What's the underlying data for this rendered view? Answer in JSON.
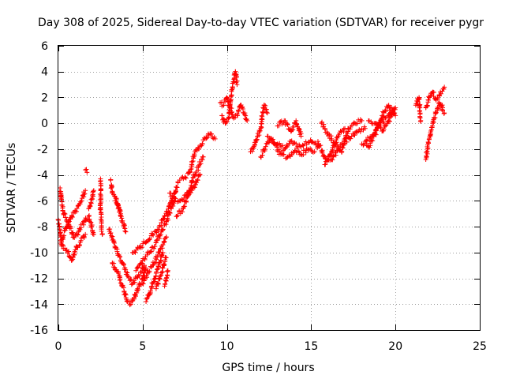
{
  "chart_data": {
    "type": "scatter",
    "title": "Day 308 of 2025, Sidereal Day-to-day VTEC variation (SDTVAR) for receiver pygr",
    "xlabel": "GPS time / hours",
    "ylabel": "SDTVAR / TECUs",
    "xlim": [
      0,
      25
    ],
    "ylim": [
      -16,
      6
    ],
    "xticks": [
      0,
      5,
      10,
      15,
      20,
      25
    ],
    "yticks": [
      -16,
      -14,
      -12,
      -10,
      -8,
      -6,
      -4,
      -2,
      0,
      2,
      4,
      6
    ],
    "grid": true,
    "marker": "+",
    "color": "#ff0000",
    "series": [
      {
        "name": "SDTVAR",
        "segments": [
          [
            [
              0.0,
              -7.5
            ],
            [
              0.2,
              -9.5
            ],
            [
              0.5,
              -9.8
            ],
            [
              0.8,
              -10.6
            ],
            [
              1.0,
              -9.8
            ],
            [
              1.3,
              -9.2
            ],
            [
              1.6,
              -8.6
            ]
          ],
          [
            [
              0.1,
              -5.0
            ],
            [
              0.3,
              -7.0
            ],
            [
              0.6,
              -7.8
            ],
            [
              0.9,
              -8.8
            ],
            [
              1.2,
              -8.4
            ],
            [
              1.5,
              -7.6
            ],
            [
              1.8,
              -7.2
            ],
            [
              2.1,
              -8.6
            ]
          ],
          [
            [
              0.2,
              -9.0
            ],
            [
              0.5,
              -8.0
            ],
            [
              0.8,
              -7.2
            ],
            [
              1.1,
              -6.6
            ],
            [
              1.4,
              -5.8
            ],
            [
              1.6,
              -5.2
            ]
          ],
          [
            [
              1.6,
              -3.6
            ],
            [
              1.7,
              -3.8
            ]
          ],
          [
            [
              1.8,
              -6.6
            ],
            [
              2.0,
              -5.8
            ],
            [
              2.1,
              -5.2
            ]
          ],
          [
            [
              2.5,
              -4.3
            ],
            [
              2.5,
              -6.6
            ],
            [
              2.6,
              -8.6
            ]
          ],
          [
            [
              3.1,
              -4.4
            ],
            [
              3.2,
              -5.4
            ],
            [
              3.4,
              -6.0
            ],
            [
              3.6,
              -6.6
            ],
            [
              3.7,
              -7.0
            ]
          ],
          [
            [
              3.0,
              -8.2
            ],
            [
              3.4,
              -9.6
            ],
            [
              3.8,
              -10.8
            ],
            [
              4.1,
              -11.8
            ],
            [
              4.4,
              -12.4
            ],
            [
              4.6,
              -12.0
            ],
            [
              4.9,
              -11.5
            ],
            [
              5.1,
              -11.0
            ]
          ],
          [
            [
              3.2,
              -10.8
            ],
            [
              3.6,
              -11.8
            ],
            [
              3.9,
              -13.0
            ],
            [
              4.1,
              -13.8
            ],
            [
              4.3,
              -14.0
            ],
            [
              4.5,
              -13.5
            ],
            [
              4.7,
              -12.8
            ],
            [
              5.0,
              -12.0
            ],
            [
              5.2,
              -11.2
            ]
          ],
          [
            [
              3.4,
              -5.8
            ],
            [
              3.7,
              -7.2
            ],
            [
              4.0,
              -8.4
            ]
          ],
          [
            [
              4.4,
              -10.0
            ],
            [
              4.8,
              -9.6
            ],
            [
              5.2,
              -9.2
            ],
            [
              5.6,
              -8.6
            ],
            [
              6.0,
              -8.0
            ],
            [
              6.3,
              -7.2
            ],
            [
              6.6,
              -6.4
            ],
            [
              6.9,
              -5.4
            ],
            [
              7.1,
              -4.6
            ]
          ],
          [
            [
              4.6,
              -11.4
            ],
            [
              5.0,
              -10.6
            ],
            [
              5.4,
              -10.0
            ],
            [
              5.8,
              -9.2
            ],
            [
              6.1,
              -8.4
            ],
            [
              6.4,
              -7.6
            ],
            [
              6.7,
              -6.6
            ],
            [
              6.9,
              -6.0
            ]
          ],
          [
            [
              5.0,
              -12.4
            ],
            [
              5.3,
              -11.6
            ],
            [
              5.6,
              -11.0
            ],
            [
              5.9,
              -10.2
            ],
            [
              6.2,
              -9.4
            ],
            [
              6.4,
              -8.8
            ]
          ],
          [
            [
              5.2,
              -13.8
            ],
            [
              5.4,
              -13.2
            ],
            [
              5.6,
              -12.4
            ],
            [
              5.8,
              -11.6
            ],
            [
              6.0,
              -10.8
            ],
            [
              6.2,
              -10.0
            ]
          ],
          [
            [
              5.8,
              -12.8
            ],
            [
              6.0,
              -12.0
            ],
            [
              6.2,
              -11.2
            ],
            [
              6.4,
              -10.4
            ]
          ],
          [
            [
              6.3,
              -12.6
            ],
            [
              6.4,
              -12.0
            ],
            [
              6.5,
              -11.4
            ]
          ],
          [
            [
              6.6,
              -5.4
            ],
            [
              6.9,
              -5.8
            ],
            [
              7.2,
              -6.0
            ],
            [
              7.6,
              -5.6
            ],
            [
              8.0,
              -5.0
            ],
            [
              8.4,
              -4.0
            ]
          ],
          [
            [
              7.0,
              -7.2
            ],
            [
              7.4,
              -6.6
            ],
            [
              7.7,
              -5.6
            ],
            [
              8.0,
              -4.2
            ],
            [
              8.3,
              -3.4
            ],
            [
              8.6,
              -2.6
            ]
          ],
          [
            [
              7.2,
              -4.4
            ],
            [
              7.5,
              -4.2
            ],
            [
              7.8,
              -3.8
            ],
            [
              8.1,
              -2.2
            ],
            [
              8.4,
              -1.8
            ],
            [
              8.7,
              -1.2
            ],
            [
              9.0,
              -0.8
            ],
            [
              9.3,
              -1.2
            ]
          ],
          [
            [
              9.6,
              1.6
            ],
            [
              9.8,
              1.4
            ],
            [
              10.0,
              2.0
            ],
            [
              10.2,
              1.2
            ],
            [
              10.4,
              0.4
            ],
            [
              10.6,
              0.6
            ],
            [
              10.8,
              1.4
            ],
            [
              11.0,
              0.8
            ],
            [
              11.2,
              0.2
            ]
          ],
          [
            [
              9.7,
              0.6
            ],
            [
              9.9,
              0.0
            ],
            [
              10.1,
              0.4
            ],
            [
              10.3,
              2.6
            ],
            [
              10.5,
              4.0
            ],
            [
              10.6,
              3.0
            ]
          ],
          [
            [
              11.4,
              -2.2
            ],
            [
              11.6,
              -1.8
            ],
            [
              11.8,
              -1.0
            ],
            [
              12.0,
              -0.4
            ],
            [
              12.2,
              1.4
            ],
            [
              12.4,
              0.8
            ]
          ],
          [
            [
              12.0,
              -2.6
            ],
            [
              12.3,
              -1.8
            ],
            [
              12.6,
              -1.2
            ],
            [
              13.0,
              -1.6
            ],
            [
              13.4,
              -2.0
            ],
            [
              13.8,
              -1.4
            ],
            [
              14.2,
              -1.8
            ],
            [
              14.6,
              -1.6
            ],
            [
              15.0,
              -1.4
            ],
            [
              15.4,
              -1.8
            ]
          ],
          [
            [
              12.4,
              -1.0
            ],
            [
              12.8,
              -1.6
            ],
            [
              13.2,
              -2.4
            ],
            [
              13.6,
              -2.6
            ],
            [
              14.0,
              -2.2
            ],
            [
              14.4,
              -2.4
            ],
            [
              14.8,
              -2.0
            ],
            [
              15.2,
              -2.2
            ]
          ],
          [
            [
              13.0,
              -0.2
            ],
            [
              13.4,
              0.2
            ],
            [
              13.8,
              -0.6
            ],
            [
              14.1,
              0.2
            ],
            [
              14.4,
              -1.0
            ]
          ],
          [
            [
              15.4,
              -1.4
            ],
            [
              15.8,
              -2.6
            ],
            [
              16.2,
              -2.8
            ],
            [
              16.6,
              -2.0
            ],
            [
              17.0,
              -1.4
            ],
            [
              17.4,
              -1.0
            ],
            [
              17.8,
              -0.6
            ],
            [
              18.2,
              -0.4
            ]
          ],
          [
            [
              15.6,
              0.0
            ],
            [
              16.0,
              -0.8
            ],
            [
              16.4,
              -1.6
            ],
            [
              16.8,
              -2.2
            ],
            [
              17.2,
              -0.4
            ],
            [
              17.6,
              0.0
            ],
            [
              18.0,
              0.2
            ]
          ],
          [
            [
              15.8,
              -3.2
            ],
            [
              16.2,
              -2.2
            ],
            [
              16.6,
              -1.0
            ],
            [
              17.0,
              -0.4
            ]
          ],
          [
            [
              18.2,
              -1.4
            ],
            [
              18.6,
              -1.0
            ],
            [
              19.0,
              -0.2
            ],
            [
              19.4,
              0.4
            ],
            [
              19.8,
              0.8
            ]
          ],
          [
            [
              18.4,
              0.2
            ],
            [
              18.8,
              0.0
            ],
            [
              19.2,
              -0.6
            ],
            [
              19.6,
              0.2
            ],
            [
              20.0,
              1.2
            ]
          ],
          [
            [
              18.0,
              -1.6
            ],
            [
              18.4,
              -1.8
            ],
            [
              18.8,
              -0.8
            ],
            [
              19.2,
              0.6
            ],
            [
              19.6,
              1.4
            ],
            [
              20.0,
              0.6
            ]
          ],
          [
            [
              21.2,
              1.4
            ],
            [
              21.4,
              2.0
            ],
            [
              21.5,
              0.2
            ]
          ],
          [
            [
              21.8,
              -2.8
            ],
            [
              21.9,
              -2.0
            ],
            [
              22.0,
              -1.2
            ],
            [
              22.1,
              -0.6
            ],
            [
              22.2,
              0.0
            ],
            [
              22.4,
              0.8
            ],
            [
              22.6,
              1.6
            ],
            [
              22.8,
              1.2
            ]
          ],
          [
            [
              21.8,
              1.2
            ],
            [
              22.0,
              2.0
            ],
            [
              22.2,
              2.4
            ],
            [
              22.4,
              1.8
            ],
            [
              22.6,
              2.2
            ],
            [
              22.9,
              2.8
            ]
          ],
          [
            [
              22.7,
              1.4
            ],
            [
              22.8,
              1.0
            ],
            [
              22.9,
              0.8
            ]
          ]
        ]
      }
    ]
  }
}
